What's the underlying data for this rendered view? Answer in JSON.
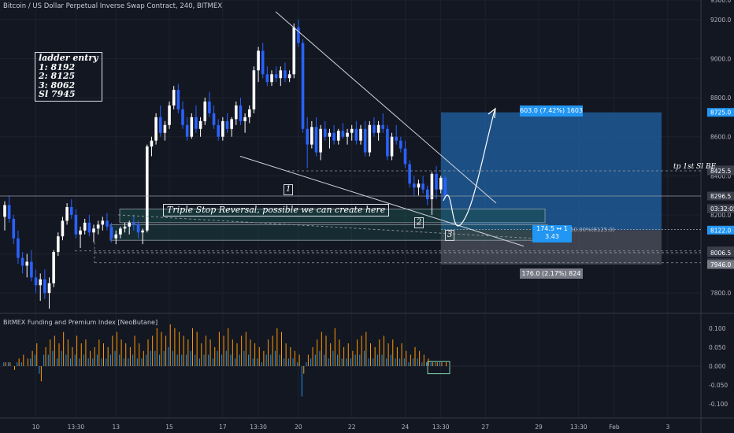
{
  "header": {
    "title": "Bitcoin / US Dollar Perpetual Inverse Swap Contract, 240, BITMEX"
  },
  "indicator": {
    "title": "BitMEX Funding and Premium Index [NeoButane]"
  },
  "annotations": {
    "ladder": [
      "ladder entry",
      "1: 8192",
      "2: 8125",
      "3: 8062",
      "Sl 7945"
    ],
    "triple_stop": "Triple Stop Reversal, possible we can create here",
    "marker_1": "1",
    "marker_2": "2",
    "marker_3": "3",
    "tp": "tp 1st Sl BE"
  },
  "position": {
    "profit_label": "603.0 (7.42%) 1603",
    "loss_label": "176.0 (2.17%) 824",
    "rr_line1": "174.5 ↔ 1",
    "rr_line2": "3.43",
    "fib_label": "50.00%(8125.0)",
    "entry": 8122.0,
    "target": 8725.0,
    "stop": 7946.0
  },
  "colors": {
    "background": "#131722",
    "up": "#ffffff",
    "down": "#2962ff",
    "profit_zone": "#1e5a96",
    "loss_zone": "#4a4e5a",
    "funding": "#ff9800",
    "premium": "#2196f3"
  },
  "chart_data": {
    "type": "candlestick",
    "symbol": "Bitcoin / US Dollar Perpetual Inverse Swap Contract",
    "interval": "240",
    "exchange": "BITMEX",
    "ylim": [
      7700,
      9300
    ],
    "y_ticks": [
      7800,
      8000,
      8200,
      8400,
      8600,
      8800,
      9000,
      9200,
      9300
    ],
    "price_labels": [
      {
        "value": 8725.0,
        "text": "8725.0",
        "color": "#2196f3"
      },
      {
        "value": 8430.0,
        "text": "8430.0",
        "color": "#3a3e4a"
      },
      {
        "value": 8425.5,
        "text": "8425.5",
        "color": "#3a3e4a"
      },
      {
        "value": 8296.5,
        "text": "8296.5",
        "color": "#3a3e4a"
      },
      {
        "value": 8232.0,
        "text": "03:32:05",
        "color": "#3a3e4a"
      },
      {
        "value": 8122.0,
        "text": "8122.0",
        "color": "#2196f3"
      },
      {
        "value": 8015.5,
        "text": "8015.5",
        "color": "#3a3e4a"
      },
      {
        "value": 8006.5,
        "text": "8006.5",
        "color": "#3a3e4a"
      },
      {
        "value": 7955.0,
        "text": "7955.0",
        "color": "#3a3e4a"
      },
      {
        "value": 7946.0,
        "text": "7946.0",
        "color": "#787b86"
      }
    ],
    "x_labels": [
      "10",
      "13:30",
      "13",
      "15",
      "17",
      "13:30",
      "20",
      "22",
      "24",
      "13:30",
      "27",
      "29",
      "13:30",
      "Feb",
      "3"
    ],
    "x_label_index": [
      7,
      16,
      25,
      37,
      49,
      57,
      66,
      78,
      90,
      98,
      108,
      120,
      129,
      137,
      149
    ],
    "candles": [
      [
        8190,
        8270,
        8120,
        8250
      ],
      [
        8250,
        8300,
        8160,
        8180
      ],
      [
        8180,
        8200,
        8050,
        8080
      ],
      [
        8080,
        8120,
        7950,
        7980
      ],
      [
        7980,
        8010,
        7900,
        7940
      ],
      [
        7940,
        8000,
        7880,
        7960
      ],
      [
        7960,
        8020,
        7860,
        7880
      ],
      [
        7880,
        7920,
        7800,
        7840
      ],
      [
        7840,
        7900,
        7760,
        7870
      ],
      [
        7870,
        7920,
        7770,
        7800
      ],
      [
        7800,
        7880,
        7720,
        7850
      ],
      [
        7850,
        8020,
        7830,
        8010
      ],
      [
        8010,
        8110,
        7990,
        8090
      ],
      [
        8090,
        8190,
        8070,
        8170
      ],
      [
        8170,
        8260,
        8150,
        8240
      ],
      [
        8240,
        8280,
        8180,
        8200
      ],
      [
        8200,
        8230,
        8080,
        8100
      ],
      [
        8100,
        8140,
        8030,
        8120
      ],
      [
        8120,
        8180,
        8100,
        8160
      ],
      [
        8160,
        8200,
        8090,
        8110
      ],
      [
        8110,
        8150,
        8060,
        8130
      ],
      [
        8130,
        8170,
        8100,
        8150
      ],
      [
        8150,
        8190,
        8120,
        8170
      ],
      [
        8170,
        8210,
        8120,
        8140
      ],
      [
        8140,
        8160,
        8060,
        8080
      ],
      [
        8080,
        8120,
        8050,
        8100
      ],
      [
        8100,
        8140,
        8080,
        8130
      ],
      [
        8130,
        8160,
        8110,
        8140
      ],
      [
        8140,
        8170,
        8100,
        8160
      ],
      [
        8160,
        8200,
        8120,
        8150
      ],
      [
        8150,
        8170,
        8080,
        8110
      ],
      [
        8110,
        8130,
        8050,
        8120
      ],
      [
        8120,
        8560,
        8110,
        8550
      ],
      [
        8550,
        8600,
        8500,
        8580
      ],
      [
        8580,
        8720,
        8560,
        8700
      ],
      [
        8700,
        8760,
        8600,
        8620
      ],
      [
        8620,
        8680,
        8580,
        8660
      ],
      [
        8660,
        8780,
        8640,
        8760
      ],
      [
        8760,
        8860,
        8740,
        8840
      ],
      [
        8840,
        8870,
        8720,
        8740
      ],
      [
        8740,
        8780,
        8640,
        8660
      ],
      [
        8660,
        8700,
        8580,
        8600
      ],
      [
        8600,
        8720,
        8590,
        8700
      ],
      [
        8700,
        8760,
        8620,
        8640
      ],
      [
        8640,
        8700,
        8600,
        8680
      ],
      [
        8680,
        8800,
        8660,
        8780
      ],
      [
        8780,
        8830,
        8700,
        8720
      ],
      [
        8720,
        8760,
        8640,
        8660
      ],
      [
        8660,
        8690,
        8580,
        8600
      ],
      [
        8600,
        8700,
        8580,
        8680
      ],
      [
        8680,
        8720,
        8620,
        8640
      ],
      [
        8640,
        8700,
        8600,
        8690
      ],
      [
        8690,
        8780,
        8660,
        8760
      ],
      [
        8760,
        8800,
        8660,
        8680
      ],
      [
        8680,
        8720,
        8620,
        8700
      ],
      [
        8700,
        8760,
        8670,
        8740
      ],
      [
        8740,
        8960,
        8720,
        8940
      ],
      [
        8940,
        9060,
        8880,
        9040
      ],
      [
        9040,
        9080,
        8900,
        8920
      ],
      [
        8920,
        8960,
        8860,
        8880
      ],
      [
        8880,
        8940,
        8860,
        8920
      ],
      [
        8920,
        8960,
        8880,
        8900
      ],
      [
        8900,
        8960,
        8860,
        8940
      ],
      [
        8940,
        8980,
        8880,
        8900
      ],
      [
        8900,
        8940,
        8880,
        8920
      ],
      [
        8920,
        9180,
        8900,
        9160
      ],
      [
        9160,
        9200,
        9060,
        9080
      ],
      [
        9080,
        9100,
        8620,
        8640
      ],
      [
        8640,
        8700,
        8440,
        8560
      ],
      [
        8560,
        8680,
        8540,
        8650
      ],
      [
        8650,
        8700,
        8500,
        8520
      ],
      [
        8520,
        8660,
        8480,
        8640
      ],
      [
        8640,
        8680,
        8580,
        8600
      ],
      [
        8600,
        8640,
        8540,
        8620
      ],
      [
        8620,
        8660,
        8560,
        8580
      ],
      [
        8580,
        8640,
        8560,
        8630
      ],
      [
        8630,
        8670,
        8590,
        8600
      ],
      [
        8600,
        8640,
        8560,
        8620
      ],
      [
        8620,
        8660,
        8580,
        8640
      ],
      [
        8640,
        8680,
        8560,
        8580
      ],
      [
        8580,
        8660,
        8560,
        8640
      ],
      [
        8640,
        8680,
        8500,
        8520
      ],
      [
        8520,
        8680,
        8500,
        8660
      ],
      [
        8660,
        8700,
        8600,
        8620
      ],
      [
        8620,
        8680,
        8580,
        8660
      ],
      [
        8660,
        8720,
        8620,
        8640
      ],
      [
        8640,
        8660,
        8480,
        8500
      ],
      [
        8500,
        8620,
        8480,
        8600
      ],
      [
        8600,
        8660,
        8560,
        8580
      ],
      [
        8580,
        8600,
        8520,
        8540
      ],
      [
        8540,
        8580,
        8440,
        8460
      ],
      [
        8460,
        8480,
        8340,
        8360
      ],
      [
        8360,
        8400,
        8300,
        8340
      ],
      [
        8340,
        8380,
        8300,
        8360
      ],
      [
        8360,
        8400,
        8310,
        8330
      ],
      [
        8330,
        8350,
        8250,
        8280
      ],
      [
        8280,
        8420,
        8200,
        8410
      ],
      [
        8410,
        8450,
        8280,
        8330
      ],
      [
        8330,
        8400,
        8310,
        8390
      ],
      [
        8390,
        8400,
        8280,
        8296
      ]
    ],
    "volume_series": [
      {
        "name": "funding",
        "values": [
          0.01,
          0.01,
          -0.01,
          0.02,
          0.03,
          0.02,
          0.04,
          0.06,
          -0.04,
          0.05,
          0.07,
          0.08,
          0.06,
          0.09,
          0.07,
          0.05,
          0.08,
          0.06,
          0.07,
          0.04,
          0.05,
          0.07,
          0.06,
          0.05,
          0.08,
          0.09,
          0.07,
          0.06,
          0.05,
          0.08,
          0.06,
          0.04,
          0.07,
          0.08,
          0.1,
          0.09,
          0.08,
          0.11,
          0.1,
          0.09,
          0.08,
          0.07,
          0.1,
          0.09,
          0.06,
          0.08,
          0.07,
          0.05,
          0.09,
          0.08,
          0.1,
          0.07,
          0.06,
          0.08,
          0.09,
          0.07,
          0.06,
          0.05,
          0.04,
          0.07,
          0.08,
          0.1,
          0.09,
          0.06,
          0.05,
          0.04,
          0.03,
          -0.02,
          0.03,
          0.05,
          0.07,
          0.09,
          0.08,
          0.06,
          0.1,
          0.07,
          0.05,
          0.06,
          0.04,
          0.07,
          0.08,
          0.09,
          0.06,
          0.05,
          0.07,
          0.08,
          0.06,
          0.07,
          0.05,
          0.06,
          0.04,
          0.03,
          0.05,
          0.04,
          0.03,
          0.02,
          0.01,
          0.01,
          0.01,
          0.01
        ]
      },
      {
        "name": "premium",
        "values": [
          0.01,
          0.01,
          0.0,
          0.01,
          0.01,
          0.0,
          0.02,
          0.03,
          -0.02,
          0.03,
          0.03,
          0.04,
          0.02,
          0.04,
          0.03,
          0.02,
          0.03,
          0.02,
          0.03,
          0.02,
          0.02,
          0.03,
          0.02,
          0.02,
          0.03,
          0.04,
          0.03,
          0.02,
          0.02,
          0.03,
          0.02,
          0.02,
          0.03,
          0.04,
          0.04,
          0.03,
          0.04,
          0.05,
          0.04,
          0.03,
          0.03,
          0.03,
          0.04,
          0.03,
          0.02,
          0.03,
          0.03,
          0.02,
          0.04,
          0.03,
          0.04,
          0.03,
          0.02,
          0.03,
          0.04,
          0.03,
          0.02,
          0.02,
          0.01,
          0.03,
          0.03,
          0.04,
          0.03,
          0.02,
          0.02,
          0.02,
          0.01,
          -0.08,
          0.01,
          0.02,
          0.03,
          0.04,
          0.03,
          0.02,
          0.04,
          0.03,
          0.02,
          0.02,
          0.02,
          0.03,
          0.03,
          0.04,
          0.02,
          0.02,
          0.03,
          0.03,
          0.02,
          0.03,
          0.02,
          0.02,
          0.02,
          0.01,
          0.02,
          0.02,
          0.01,
          0.01,
          0.01,
          0.01,
          0.01,
          0.0
        ]
      }
    ],
    "indicator_ylim": [
      -0.135,
      0.135
    ],
    "indicator_ticks": [
      0.1,
      0.05,
      0.0,
      -0.05,
      -0.1
    ],
    "indicator_tick_labels": [
      "0.100",
      "0.050",
      "0.000",
      "-0.050",
      "-0.100"
    ]
  }
}
